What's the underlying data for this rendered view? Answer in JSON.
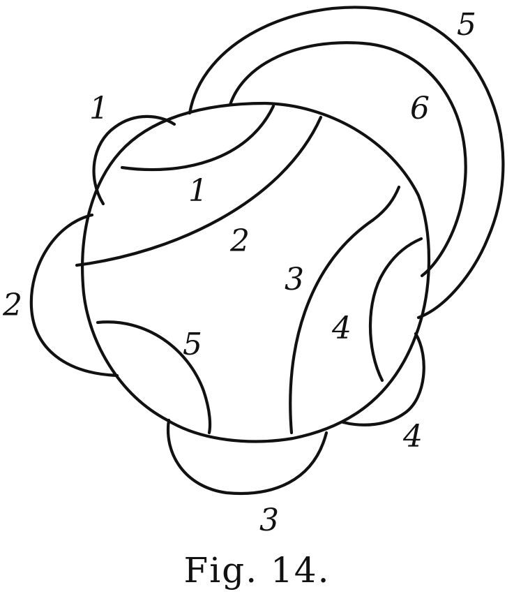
{
  "caption": "Fig. 14.",
  "outer_labels": {
    "one": "1",
    "two": "2",
    "three": "3",
    "four": "4",
    "five": "5"
  },
  "inner_labels": {
    "one": "1",
    "two": "2",
    "three": "3",
    "four": "4",
    "five": "5",
    "six": "6"
  }
}
